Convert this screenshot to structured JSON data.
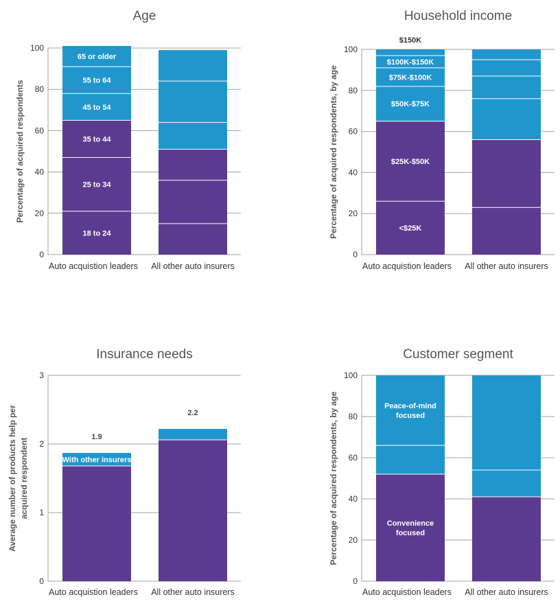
{
  "colors": {
    "purple": "#5b3b8f",
    "blue": "#2196cc",
    "grid": "#a0a0a0",
    "divider": "#ffffff"
  },
  "chart_data": [
    {
      "type": "bar",
      "stacked": true,
      "title": "Age",
      "ylabel": "Percentage of acquired respondents",
      "ylim": [
        0,
        100
      ],
      "yticks": [
        "0",
        "20",
        "40",
        "60",
        "80",
        "100"
      ],
      "categories": [
        "Auto acquistion leaders",
        "All other auto insurers"
      ],
      "series": [
        {
          "name": "18 to 24",
          "color": "purple",
          "values": [
            21,
            15
          ]
        },
        {
          "name": "25 to 34",
          "color": "purple",
          "values": [
            26,
            21
          ]
        },
        {
          "name": "35 to 44",
          "color": "purple",
          "values": [
            18,
            15
          ]
        },
        {
          "name": "45 to 54",
          "color": "blue",
          "values": [
            13,
            13
          ]
        },
        {
          "name": "55 to 64",
          "color": "blue",
          "values": [
            13,
            20
          ]
        },
        {
          "name": "65 or older",
          "color": "blue",
          "values": [
            10,
            15
          ]
        }
      ]
    },
    {
      "type": "bar",
      "stacked": true,
      "title": "Household income",
      "ylabel": "Percentage of acquired respondents, by age",
      "ylim": [
        0,
        100
      ],
      "yticks": [
        "0",
        "20",
        "40",
        "60",
        "80",
        "100"
      ],
      "categories": [
        "Auto acquistion leaders",
        "All other auto insurers"
      ],
      "series": [
        {
          "name": "<$25K",
          "color": "purple",
          "values": [
            26,
            23
          ]
        },
        {
          "name": "$25K-$50K",
          "color": "purple",
          "values": [
            39,
            33
          ]
        },
        {
          "name": "$50K-$75K",
          "color": "blue",
          "values": [
            17,
            20
          ]
        },
        {
          "name": "$75K-$100K",
          "color": "blue",
          "values": [
            9,
            11
          ]
        },
        {
          "name": "$100K-$150K",
          "color": "blue",
          "values": [
            6,
            8
          ]
        },
        {
          "name": "$150K",
          "color": "blue",
          "values": [
            3,
            5
          ]
        }
      ]
    },
    {
      "type": "bar",
      "stacked": true,
      "title": "Insurance needs",
      "ylabel": "Average number of products help per acquired respondent",
      "ylim": [
        0,
        3
      ],
      "yticks": [
        "0",
        "1",
        "2",
        "3"
      ],
      "categories": [
        "Auto acquistion leaders",
        "All other auto insurers"
      ],
      "totals": [
        "1.9",
        "2.2"
      ],
      "series": [
        {
          "name": "",
          "color": "purple",
          "values": [
            1.68,
            2.06
          ]
        },
        {
          "name": "With other insurers",
          "color": "blue",
          "values": [
            0.19,
            0.16
          ]
        }
      ]
    },
    {
      "type": "bar",
      "stacked": true,
      "title": "Customer segment",
      "ylabel": "Percentage of acquired respondents, by age",
      "ylim": [
        0,
        100
      ],
      "yticks": [
        "0",
        "20",
        "40",
        "60",
        "80",
        "100"
      ],
      "categories": [
        "Auto acquistion leaders",
        "All other auto insurers"
      ],
      "series": [
        {
          "name": "Convenience focused",
          "color": "purple",
          "values": [
            52,
            41
          ]
        },
        {
          "name": "",
          "color": "blue",
          "values": [
            14,
            13
          ]
        },
        {
          "name": "Peace-of-mind focused",
          "color": "blue",
          "values": [
            34,
            46
          ]
        }
      ]
    }
  ]
}
